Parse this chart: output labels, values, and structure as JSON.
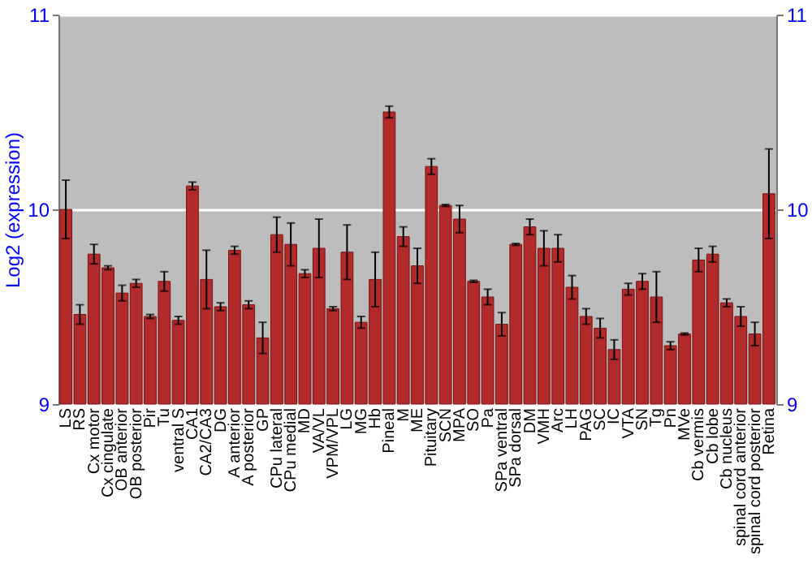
{
  "chart_data": {
    "type": "bar",
    "ylabel": "Log2 (expression)",
    "categories": [
      "LS",
      "RS",
      "Cx motor",
      "Cx cingulate",
      "OB anterior",
      "OB posterior",
      "Pir",
      "Tu",
      "ventral S",
      "CA1",
      "CA2/CA3",
      "DG",
      "A anterior",
      "A posterior",
      "GP",
      "CPu lateral",
      "CPu medial",
      "MD",
      "VA/VL",
      "VPM/VPL",
      "LG",
      "MG",
      "Hb",
      "Pineal",
      "M",
      "ME",
      "Pituitary",
      "SCN",
      "MPA",
      "SO",
      "Pa",
      "SPa ventral",
      "SPa dorsal",
      "DM",
      "VMH",
      "Arc",
      "LH",
      "PAG",
      "SC",
      "IC",
      "VTA",
      "SN",
      "Tg",
      "Pn",
      "MVe",
      "Cb vermis",
      "Cb lobe",
      "Cb nucleus",
      "spinal cord anterior",
      "spinal cord posterior",
      "Retina"
    ],
    "values": [
      10.0,
      9.46,
      9.77,
      9.7,
      9.57,
      9.62,
      9.45,
      9.63,
      9.43,
      10.12,
      9.64,
      9.5,
      9.79,
      9.51,
      9.34,
      9.87,
      9.82,
      9.67,
      9.8,
      9.49,
      9.78,
      9.42,
      9.64,
      10.5,
      9.86,
      9.71,
      10.22,
      10.02,
      9.95,
      9.63,
      9.55,
      9.41,
      9.82,
      9.91,
      9.8,
      9.8,
      9.6,
      9.45,
      9.39,
      9.28,
      9.59,
      9.63,
      9.55,
      9.3,
      9.36,
      9.74,
      9.77,
      9.52,
      9.45,
      9.36,
      10.08
    ],
    "errors": [
      0.15,
      0.05,
      0.05,
      0.01,
      0.04,
      0.02,
      0.01,
      0.05,
      0.02,
      0.02,
      0.15,
      0.02,
      0.02,
      0.02,
      0.08,
      0.09,
      0.11,
      0.02,
      0.15,
      0.01,
      0.14,
      0.03,
      0.14,
      0.03,
      0.05,
      0.09,
      0.04,
      0.005,
      0.07,
      0.005,
      0.04,
      0.06,
      0.005,
      0.04,
      0.09,
      0.07,
      0.06,
      0.04,
      0.05,
      0.05,
      0.03,
      0.04,
      0.13,
      0.02,
      0.005,
      0.06,
      0.04,
      0.02,
      0.05,
      0.06,
      0.23
    ],
    "color": "#b22a2a",
    "ylim": [
      9,
      11
    ],
    "yticks": [
      9,
      10,
      11
    ],
    "y2lim": [
      9,
      11
    ],
    "y2ticks": [
      9,
      10,
      11
    ],
    "grid": "y"
  }
}
